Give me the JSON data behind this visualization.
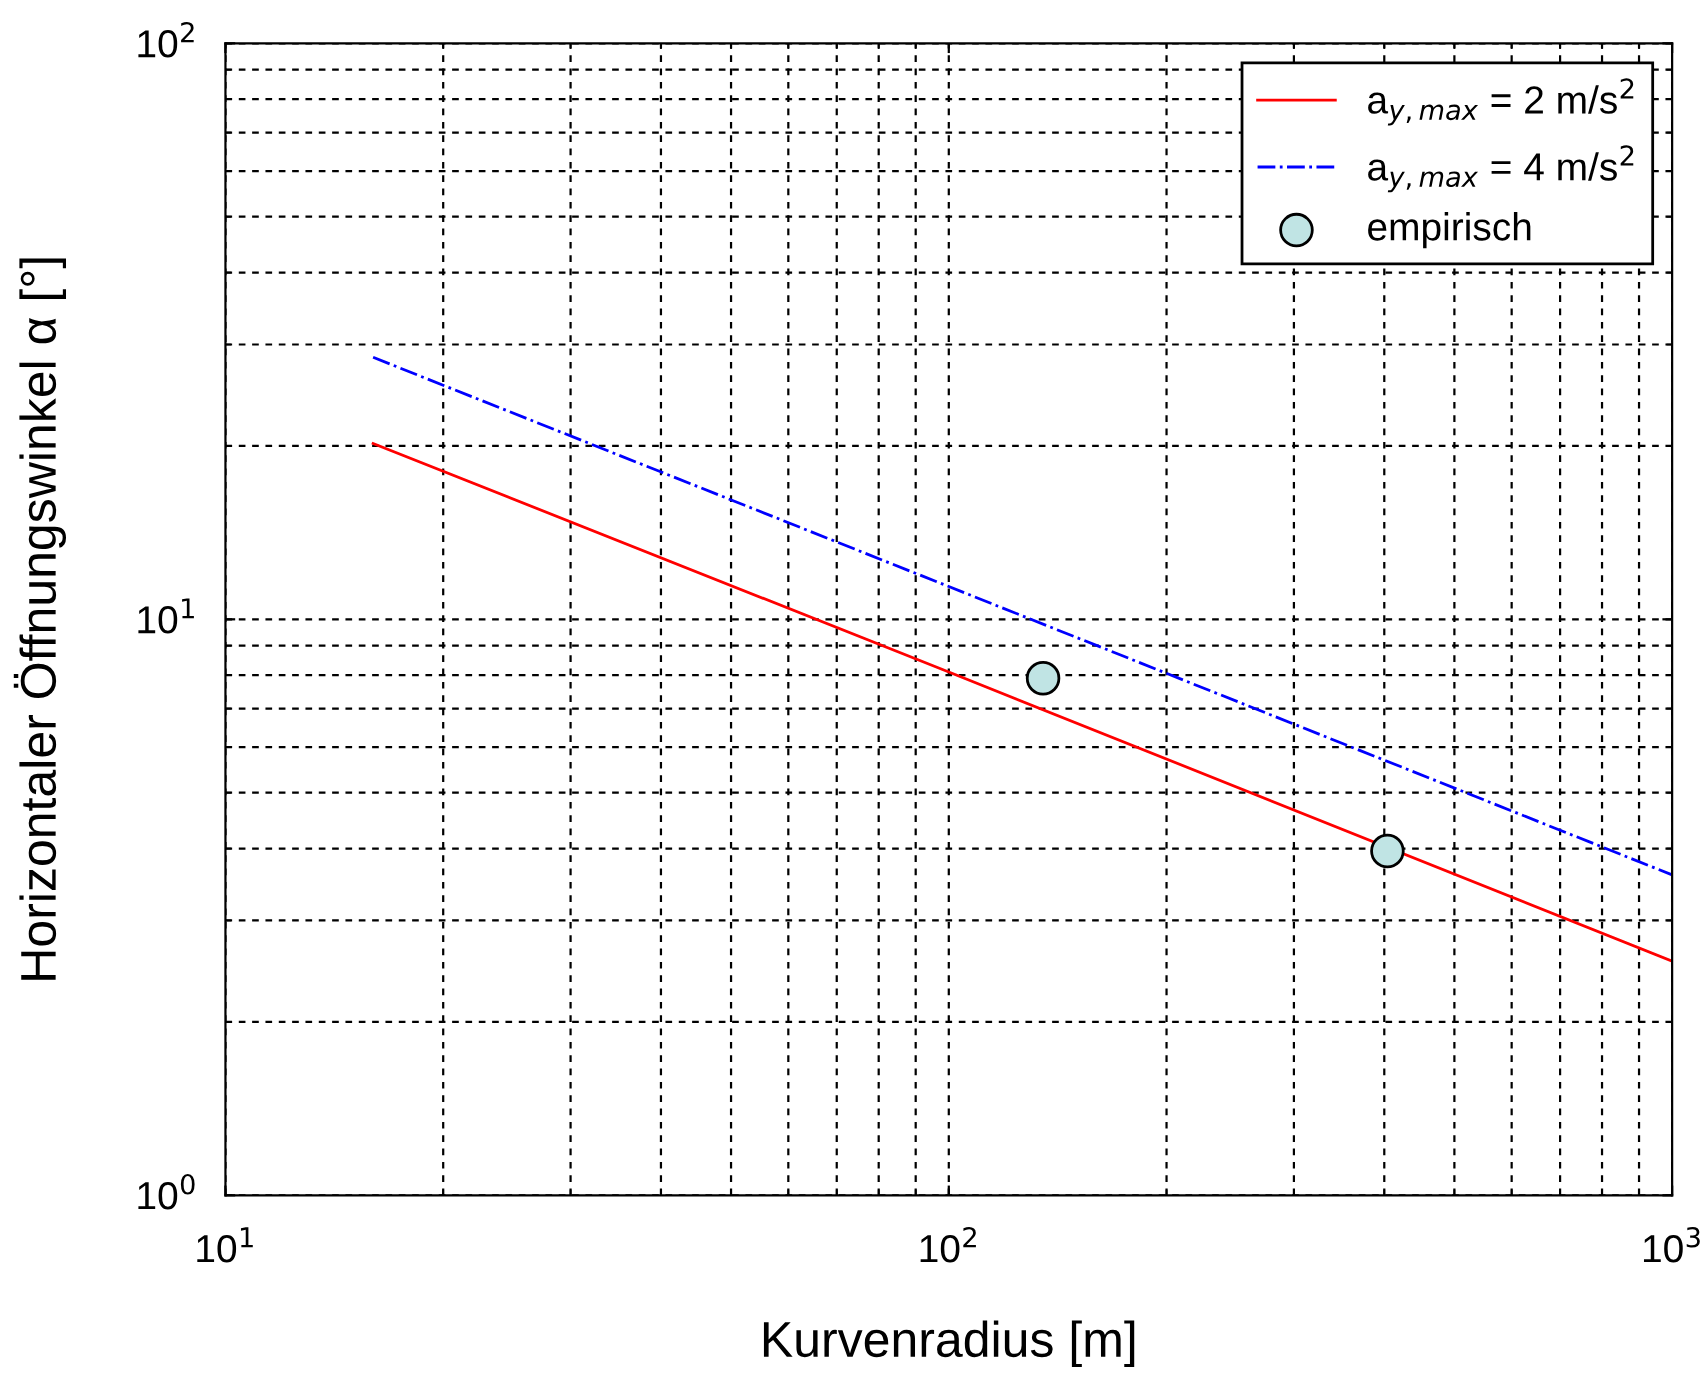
{
  "chart_data": {
    "type": "line",
    "xlabel": "Kurvenradius [m]",
    "ylabel": "Horizontaler Öffnungswinkel α [°]",
    "log": "xy",
    "grid": true,
    "legend": "top right",
    "xlim": [
      10,
      1000
    ],
    "ylim": [
      1,
      100
    ],
    "xticks": [
      {
        "value": 10,
        "label": "10$^{1}$"
      },
      {
        "value": 100,
        "label": "10$^{2}$"
      },
      {
        "value": 1000,
        "label": "10$^{3}$"
      }
    ],
    "yticks": [
      {
        "value": 1,
        "label": "10$^{0}$"
      },
      {
        "value": 10,
        "label": "10$^{1}$"
      },
      {
        "value": 100,
        "label": "10$^{2}$"
      }
    ],
    "series": [
      {
        "name": "a$_{y,max}$ = 2 m/s$^{2}$",
        "color": "#ff0000",
        "line_style": "solid",
        "x": [
          16,
          100,
          1000
        ],
        "values": [
          20.2,
          8.1,
          2.55
        ]
      },
      {
        "name": "a$_{y,max}$ = 4 m/s$^{2}$",
        "color": "#0000ff",
        "line_style": "dashed",
        "x": [
          16,
          100,
          1000
        ],
        "values": [
          28.5,
          11.4,
          3.6
        ]
      },
      {
        "name": "empirisch",
        "color": "#c0e4e4",
        "type": "scatter",
        "marker": "circle",
        "x": [
          135,
          404
        ],
        "values": [
          7.9,
          3.96
        ]
      }
    ]
  }
}
